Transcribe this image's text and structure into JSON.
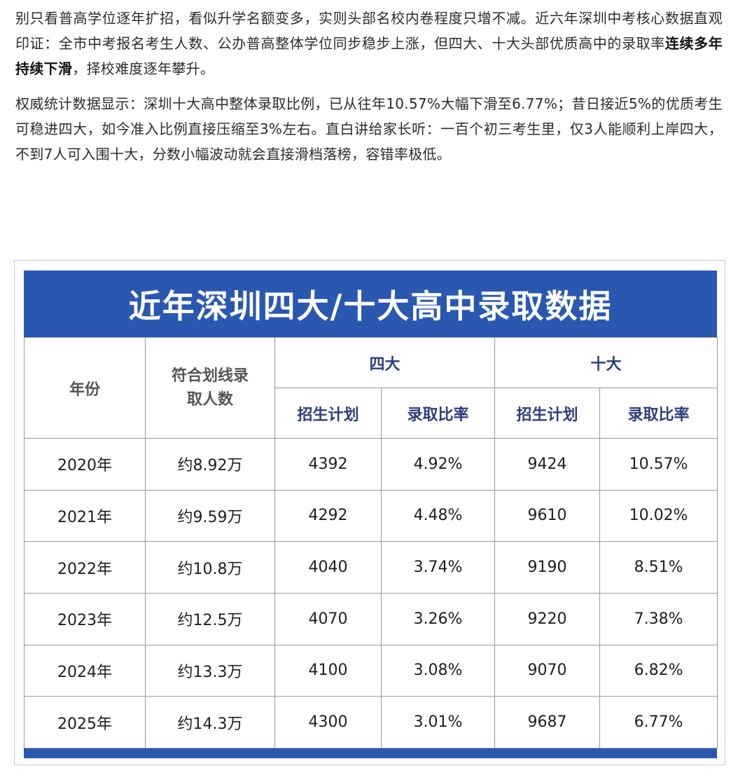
{
  "article": {
    "p1_a": "别只看普高学位逐年扩招，看似升学名额变多，实则头部名校内卷程度只增不减。近六年深圳中考核心数据直观印证：全市中考报名考生人数、公办普高整体学位同步稳步上涨，但四大、十大头部优质高中的录取率",
    "p1_bold": "连续多年持续下滑",
    "p1_b": "，择校难度逐年攀升。",
    "p2": "权威统计数据显示：深圳十大高中整体录取比例，已从往年10.57%大幅下滑至6.77%；昔日接近5%的优质考生可稳进四大，如今准入比例直接压缩至3%左右。直白讲给家长听：一百个初三考生里，仅3人能顺利上岸四大，不到7人可入围十大，分数小幅波动就会直接滑档落榜，容错率极低。"
  },
  "table": {
    "title": "近年深圳四大/十大高中录取数据",
    "headers": {
      "year": "年份",
      "qualified": "符合划线录取人数",
      "big4": "四大",
      "big10": "十大",
      "plan": "招生计划",
      "rate": "录取比率"
    },
    "rows": [
      {
        "year": "2020年",
        "qualified": "约8.92万",
        "b4_plan": "4392",
        "b4_rate": "4.92%",
        "b10_plan": "9424",
        "b10_rate": "10.57%"
      },
      {
        "year": "2021年",
        "qualified": "约9.59万",
        "b4_plan": "4292",
        "b4_rate": "4.48%",
        "b10_plan": "9610",
        "b10_rate": "10.02%"
      },
      {
        "year": "2022年",
        "qualified": "约10.8万",
        "b4_plan": "4040",
        "b4_rate": "3.74%",
        "b10_plan": "9190",
        "b10_rate": "8.51%"
      },
      {
        "year": "2023年",
        "qualified": "约12.5万",
        "b4_plan": "4070",
        "b4_rate": "3.26%",
        "b10_plan": "9220",
        "b10_rate": "7.38%"
      },
      {
        "year": "2024年",
        "qualified": "约13.3万",
        "b4_plan": "4100",
        "b4_rate": "3.08%",
        "b10_plan": "9070",
        "b10_rate": "6.82%"
      },
      {
        "year": "2025年",
        "qualified": "约14.3万",
        "b4_plan": "4300",
        "b4_rate": "3.01%",
        "b10_plan": "9687",
        "b10_rate": "6.77%"
      }
    ]
  },
  "colors": {
    "banner": "#2a58b0",
    "grid": "#9a9a9a"
  }
}
